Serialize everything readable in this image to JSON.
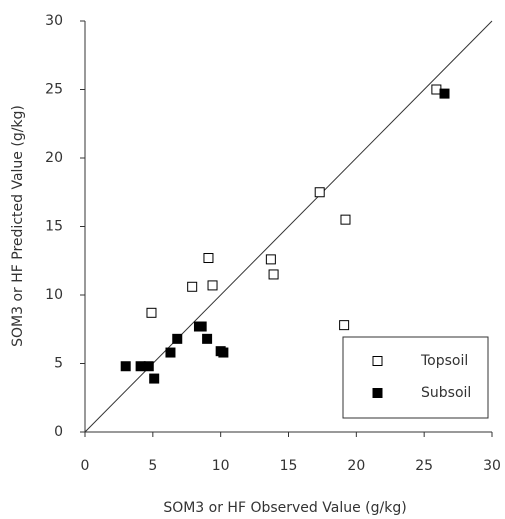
{
  "chart_data": {
    "type": "scatter",
    "x_label": "SOM3 or HF Observed Value (g/kg)",
    "y_label": "SOM3 or HF Predicted Value (g/kg)",
    "xlim": [
      0,
      30
    ],
    "ylim": [
      0,
      30
    ],
    "xticks": [
      0,
      5,
      10,
      15,
      20,
      25,
      30
    ],
    "yticks": [
      0,
      5,
      10,
      15,
      20,
      25,
      30
    ],
    "legend": "lower right",
    "series": [
      {
        "name": "Topsoil",
        "color": "#000000",
        "filled": false,
        "x": [
          25.9,
          17.3,
          19.2,
          9.1,
          13.7,
          13.9,
          7.9,
          9.4,
          4.9,
          19.1
        ],
        "values": [
          25.0,
          17.5,
          15.5,
          12.7,
          12.6,
          11.5,
          10.6,
          10.7,
          8.7,
          7.8
        ]
      },
      {
        "name": "Subsoil",
        "color": "#000000",
        "filled": true,
        "x": [
          26.5,
          3.0,
          4.1,
          4.7,
          5.1,
          6.3,
          6.8,
          8.4,
          8.6,
          9.0,
          10.0,
          10.2
        ],
        "values": [
          24.7,
          4.8,
          4.8,
          4.8,
          3.9,
          5.8,
          6.8,
          7.7,
          7.7,
          6.8,
          5.9,
          5.8
        ]
      }
    ]
  }
}
